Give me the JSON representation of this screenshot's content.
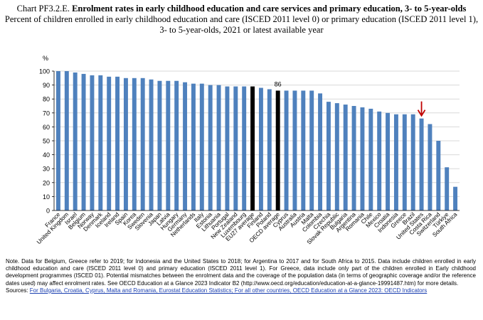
{
  "header": {
    "chart_id": "Chart PF3.2.E.",
    "title": "Enrolment rates in early childhood education and care services and primary education, 3- to 5-year-olds",
    "subtitle": "Percent of children enrolled in early childhood education and care (ISCED 2011 level 0) or primary education (ISCED 2011 level 1), 3- to 5-year-olds, 2021 or latest available year"
  },
  "chart_data": {
    "type": "bar",
    "title": "Enrolment rates in early childhood education and care services and primary education, 3- to 5-year-olds",
    "ylabel": "%",
    "xlabel": "",
    "ylim": [
      0,
      100
    ],
    "yticks": [
      0,
      10,
      20,
      30,
      40,
      50,
      60,
      70,
      80,
      90,
      100
    ],
    "categories": [
      "France",
      "United Kingdom",
      "Israel",
      "Belgium",
      "Norway",
      "Denmark",
      "Iceland",
      "Ireland",
      "Spain",
      "Korea",
      "Sweden",
      "Slovenia",
      "Japan",
      "Latvia",
      "Hungary",
      "Germany",
      "Netherlands",
      "Italy",
      "Estonia",
      "Lithuania",
      "Portugal",
      "New Zealand",
      "Luxembourg",
      "EU27 average",
      "Finland",
      "Poland",
      "OECD average",
      "Cyprus",
      "Australia",
      "Austria",
      "Malta",
      "Colombia",
      "Czechia",
      "Slovak Republic",
      "Bulgaria",
      "Argentina",
      "Romania",
      "Chile",
      "Mexico",
      "Croatia",
      "Indonesia",
      "Greece",
      "Brazil",
      "United States",
      "Costa Rica",
      "Switzerland",
      "Türkiye",
      "South Africa"
    ],
    "values": [
      100,
      100,
      99,
      98,
      97,
      97,
      96,
      96,
      95,
      95,
      95,
      94,
      93,
      93,
      93,
      92,
      91,
      91,
      90,
      90,
      89,
      89,
      89,
      89,
      88,
      87,
      86,
      86,
      86,
      86,
      86,
      84,
      78,
      77,
      76,
      75,
      74,
      73,
      71,
      70,
      69,
      69,
      69,
      66,
      62,
      50,
      31,
      17
    ],
    "highlighted": [
      "EU27 average",
      "OECD average"
    ],
    "data_labels": [
      {
        "category": "OECD average",
        "text": "86"
      }
    ],
    "arrow_marker": {
      "category": "United States",
      "color": "#c00000"
    },
    "bar_color": "#4f81bd",
    "highlight_color": "#000000",
    "grid": true,
    "legend": "none"
  },
  "note": {
    "text": "Note. Data for Belgium, Greece refer to 2019; for Indonesia and the United States to 2018; for Argentina to 2017 and for South Africa to 2015. Data include children enrolled in early childhood education and care (ISCED 2011 level 0) and primary education (ISCED 2011 level 1). For Greece, data include only part of the children enrolled in Early childhood development programmes (ISCED 01). Potential mismatches between the enrolment data and the coverage of the population data (in terms of geographic coverage and/or the reference dates used) may affect enrolment rates. See OECD Education at a Glance 2023 Indicator B2 (http://www.oecd.org/education/education-at-a-glance-19991487.htm) for more details.",
    "sources_label": "Sources: ",
    "sources_link": "For Bulgaria, Croatia, Cyprus, Malta and Romania, Eurostat Education Statistics; For all other countries, OECD Education at a Glance 2023: OECD Indicators"
  }
}
